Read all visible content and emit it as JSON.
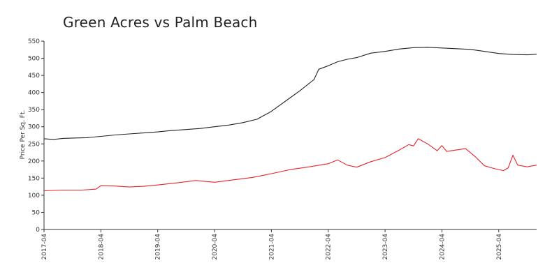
{
  "chart_data": {
    "type": "line",
    "title": "Green Acres vs Palm Beach",
    "ylabel": "Price Per Sq. Ft.",
    "xlabel": "",
    "ylim": [
      0,
      550
    ],
    "yticks": [
      0,
      50,
      100,
      150,
      200,
      250,
      300,
      350,
      400,
      450,
      500,
      550
    ],
    "xticks": [
      "2017-04",
      "2018-04",
      "2019-04",
      "2020-04",
      "2021-04",
      "2022-04",
      "2023-04",
      "2024-04",
      "2025-04"
    ],
    "x_range": [
      "2017-04",
      "2025-12"
    ],
    "grid": false,
    "legend": "none",
    "series": [
      {
        "color": "#222222",
        "points": [
          [
            "2017-04",
            265
          ],
          [
            "2017-06",
            263
          ],
          [
            "2017-08",
            266
          ],
          [
            "2017-10",
            267
          ],
          [
            "2018-01",
            268
          ],
          [
            "2018-04",
            272
          ],
          [
            "2018-07",
            276
          ],
          [
            "2018-10",
            279
          ],
          [
            "2019-01",
            282
          ],
          [
            "2019-04",
            285
          ],
          [
            "2019-07",
            289
          ],
          [
            "2019-10",
            292
          ],
          [
            "2020-01",
            295
          ],
          [
            "2020-04",
            300
          ],
          [
            "2020-07",
            305
          ],
          [
            "2020-10",
            312
          ],
          [
            "2021-01",
            322
          ],
          [
            "2021-04",
            345
          ],
          [
            "2021-06",
            365
          ],
          [
            "2021-08",
            385
          ],
          [
            "2021-10",
            405
          ],
          [
            "2022-01",
            438
          ],
          [
            "2022-02",
            468
          ],
          [
            "2022-04",
            478
          ],
          [
            "2022-06",
            490
          ],
          [
            "2022-08",
            497
          ],
          [
            "2022-10",
            502
          ],
          [
            "2023-01",
            515
          ],
          [
            "2023-04",
            520
          ],
          [
            "2023-07",
            527
          ],
          [
            "2023-10",
            531
          ],
          [
            "2024-01",
            532
          ],
          [
            "2024-04",
            530
          ],
          [
            "2024-07",
            528
          ],
          [
            "2024-10",
            526
          ],
          [
            "2025-01",
            520
          ],
          [
            "2025-04",
            514
          ],
          [
            "2025-07",
            511
          ],
          [
            "2025-10",
            510
          ],
          [
            "2025-12",
            512
          ]
        ]
      },
      {
        "color": "#e8242b",
        "points": [
          [
            "2017-04",
            113
          ],
          [
            "2017-08",
            115
          ],
          [
            "2017-12",
            115
          ],
          [
            "2018-03",
            118
          ],
          [
            "2018-04",
            128
          ],
          [
            "2018-07",
            127
          ],
          [
            "2018-10",
            124
          ],
          [
            "2019-01",
            126
          ],
          [
            "2019-04",
            130
          ],
          [
            "2019-08",
            136
          ],
          [
            "2019-12",
            143
          ],
          [
            "2020-04",
            138
          ],
          [
            "2020-08",
            145
          ],
          [
            "2020-12",
            152
          ],
          [
            "2021-04",
            163
          ],
          [
            "2021-08",
            175
          ],
          [
            "2021-12",
            183
          ],
          [
            "2022-04",
            192
          ],
          [
            "2022-06",
            203
          ],
          [
            "2022-08",
            188
          ],
          [
            "2022-10",
            182
          ],
          [
            "2023-01",
            198
          ],
          [
            "2023-04",
            210
          ],
          [
            "2023-07",
            232
          ],
          [
            "2023-09",
            248
          ],
          [
            "2023-10",
            244
          ],
          [
            "2023-11",
            265
          ],
          [
            "2024-01",
            250
          ],
          [
            "2024-03",
            230
          ],
          [
            "2024-04",
            245
          ],
          [
            "2024-05",
            228
          ],
          [
            "2024-09",
            236
          ],
          [
            "2024-11",
            213
          ],
          [
            "2025-01",
            186
          ],
          [
            "2025-03",
            178
          ],
          [
            "2025-05",
            172
          ],
          [
            "2025-06",
            180
          ],
          [
            "2025-07",
            217
          ],
          [
            "2025-08",
            188
          ],
          [
            "2025-10",
            183
          ],
          [
            "2025-12",
            188
          ]
        ]
      }
    ]
  }
}
